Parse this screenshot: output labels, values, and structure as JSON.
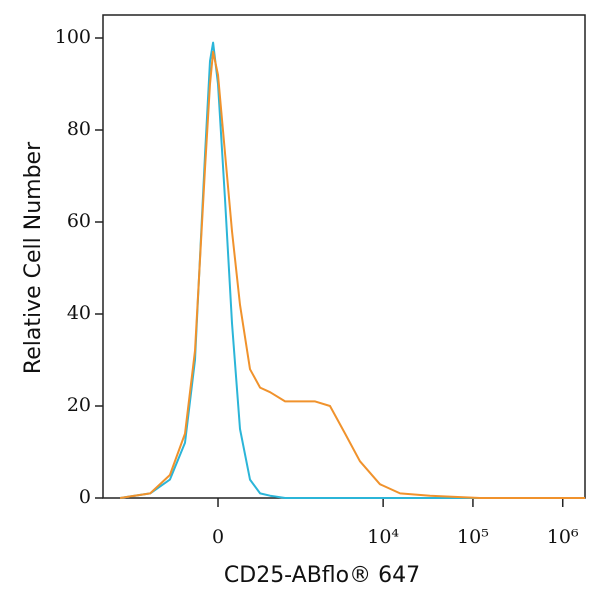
{
  "chart_data": {
    "type": "line",
    "x_label": "CD25-ABflo® 647",
    "y_label": "Relative Cell Number",
    "x_scale": "biexponential",
    "x": [
      -1775,
      -800,
      -455,
      -276,
      -181,
      -98,
      -60,
      -37,
      0,
      52,
      106,
      172,
      265,
      377,
      513,
      783,
      1169,
      1737,
      2552,
      3770,
      5510,
      9200,
      15460,
      33350,
      120000,
      1770000
    ],
    "series": [
      {
        "color": "#2bb5d8",
        "values": [
          0,
          1,
          4,
          12,
          30,
          75,
          95,
          99,
          90,
          65,
          38,
          15,
          4,
          1,
          0.5,
          0,
          0,
          0,
          0,
          0,
          0,
          0,
          0,
          0,
          0,
          0
        ]
      },
      {
        "color": "#f0922c",
        "values": [
          0,
          1,
          5,
          14,
          32,
          72,
          90,
          97,
          92,
          75,
          58,
          42,
          28,
          24,
          23,
          21,
          21,
          21,
          20,
          14,
          8,
          3,
          1,
          0.5,
          0,
          0
        ]
      }
    ],
    "xlim": [
      -2760,
      1770000
    ],
    "xticks": [
      0,
      {
        "value": 10000,
        "label": "10⁴"
      },
      {
        "value": 100000,
        "label": "10⁵"
      },
      {
        "value": 1000000,
        "label": "10⁶"
      }
    ],
    "ylim": [
      0,
      105
    ],
    "yticks": [
      0,
      20,
      40,
      60,
      80,
      100
    ],
    "grid": false
  }
}
